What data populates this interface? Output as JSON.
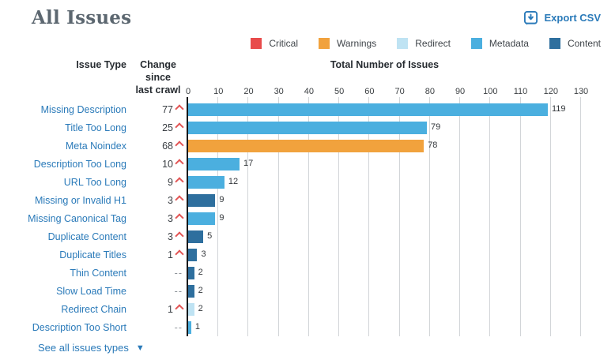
{
  "page": {
    "title": "All Issues"
  },
  "toolbar": {
    "export_label": "Export CSV"
  },
  "legend": {
    "items": [
      {
        "label": "Critical",
        "color": "#e84b4b"
      },
      {
        "label": "Warnings",
        "color": "#f1a23d"
      },
      {
        "label": "Redirect",
        "color": "#bfe3f3"
      },
      {
        "label": "Metadata",
        "color": "#4bafdf"
      },
      {
        "label": "Content",
        "color": "#2e6f9e"
      }
    ]
  },
  "columns": {
    "issue_type": "Issue Type",
    "change_line1": "Change since",
    "change_line2": "last crawl",
    "total": "Total Number of Issues"
  },
  "chart_data": {
    "type": "bar",
    "orientation": "horizontal",
    "title": "",
    "xlabel": "Total Number of Issues",
    "ylabel": "Issue Type",
    "xlim": [
      0,
      130
    ],
    "xticks": [
      0,
      10,
      20,
      30,
      40,
      50,
      60,
      70,
      80,
      90,
      100,
      110,
      120,
      130
    ],
    "grid": true,
    "legend_position": "top-right",
    "rows": [
      {
        "label": "Missing Description",
        "change": "77",
        "change_dir": "up",
        "value": 119,
        "category": "Metadata"
      },
      {
        "label": "Title Too Long",
        "change": "25",
        "change_dir": "up",
        "value": 79,
        "category": "Metadata"
      },
      {
        "label": "Meta Noindex",
        "change": "68",
        "change_dir": "up",
        "value": 78,
        "category": "Warnings"
      },
      {
        "label": "Description Too Long",
        "change": "10",
        "change_dir": "up",
        "value": 17,
        "category": "Metadata"
      },
      {
        "label": "URL Too Long",
        "change": "9",
        "change_dir": "up",
        "value": 12,
        "category": "Metadata"
      },
      {
        "label": "Missing or Invalid H1",
        "change": "3",
        "change_dir": "up",
        "value": 9,
        "category": "Content"
      },
      {
        "label": "Missing Canonical Tag",
        "change": "3",
        "change_dir": "up",
        "value": 9,
        "category": "Metadata"
      },
      {
        "label": "Duplicate Content",
        "change": "3",
        "change_dir": "up",
        "value": 5,
        "category": "Content"
      },
      {
        "label": "Duplicate Titles",
        "change": "1",
        "change_dir": "up",
        "value": 3,
        "category": "Content"
      },
      {
        "label": "Thin Content",
        "change": "--",
        "change_dir": "none",
        "value": 2,
        "category": "Content"
      },
      {
        "label": "Slow Load Time",
        "change": "--",
        "change_dir": "none",
        "value": 2,
        "category": "Content"
      },
      {
        "label": "Redirect Chain",
        "change": "1",
        "change_dir": "up",
        "value": 2,
        "category": "Redirect"
      },
      {
        "label": "Description Too Short",
        "change": "--",
        "change_dir": "none",
        "value": 1,
        "category": "Metadata"
      }
    ]
  },
  "footer": {
    "see_all_label": "See all issues types"
  }
}
